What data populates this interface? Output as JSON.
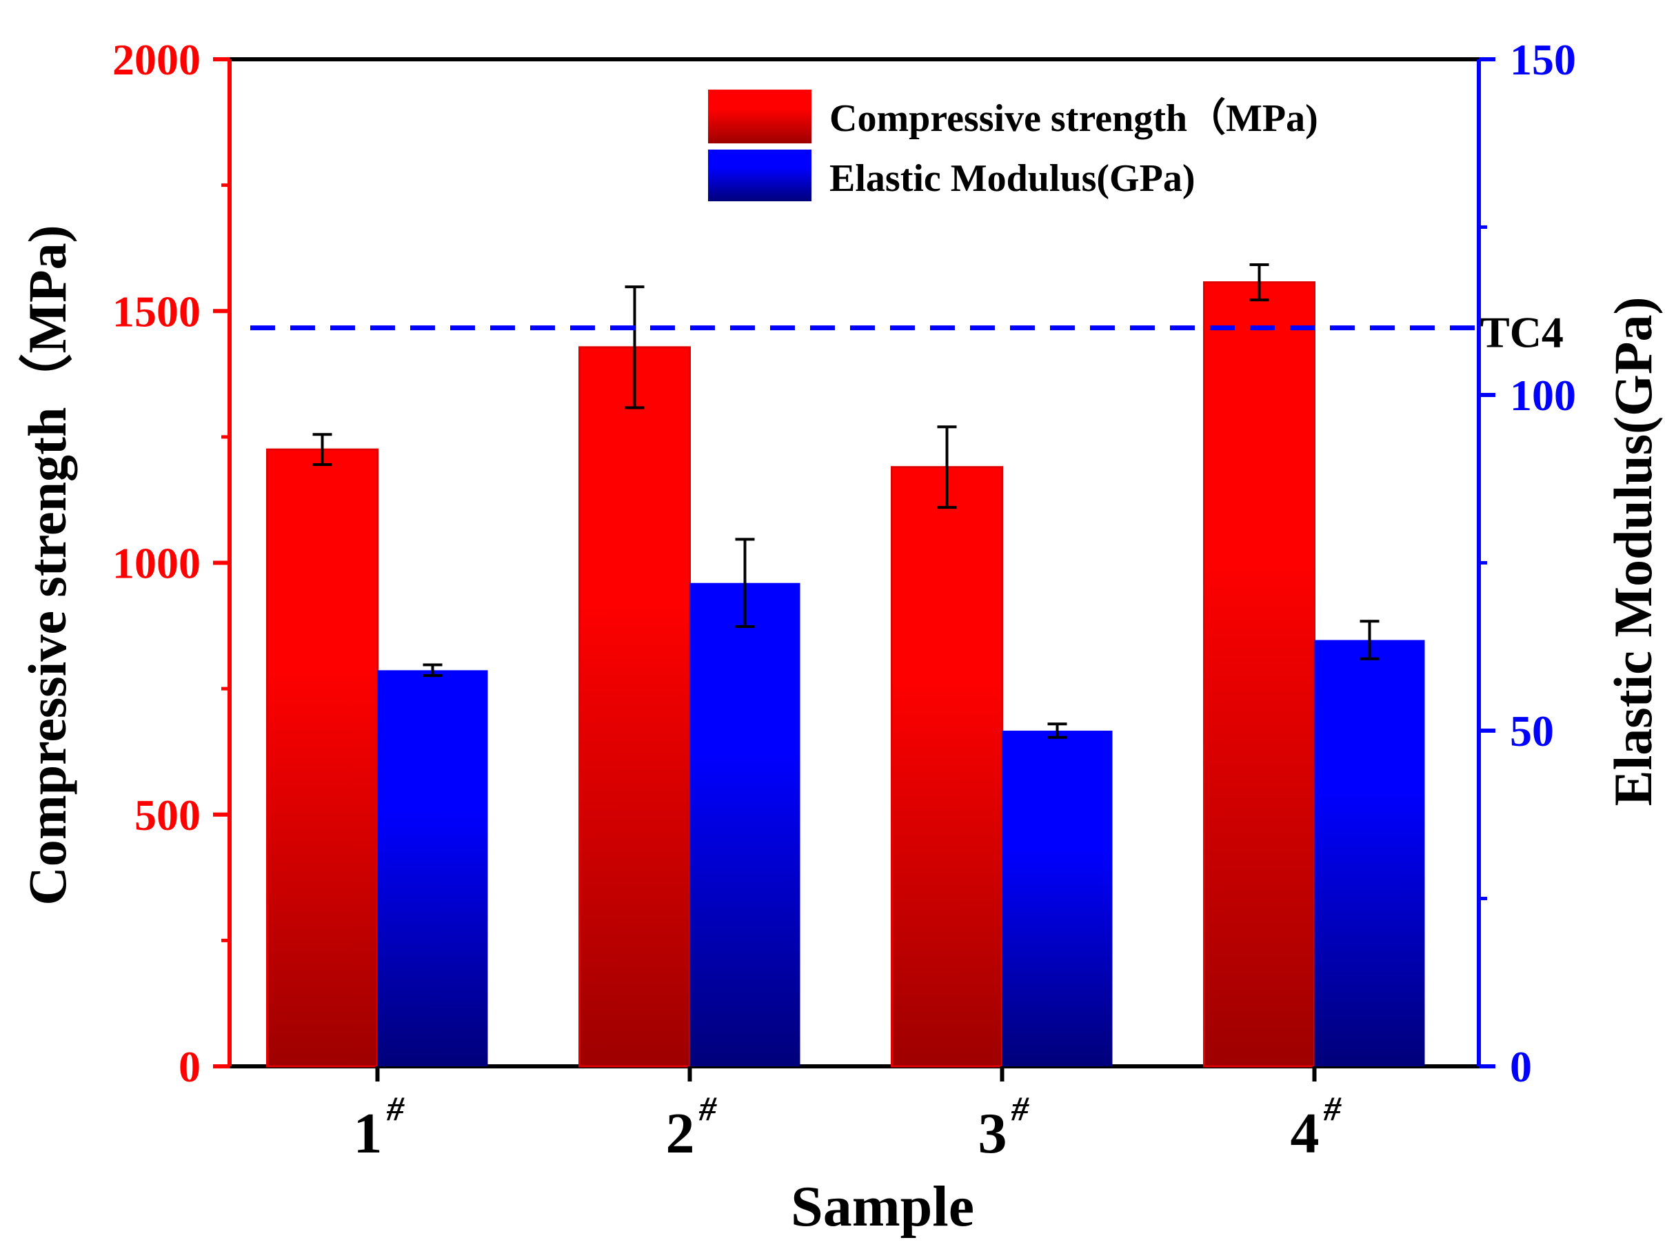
{
  "chart_data": {
    "type": "bar",
    "categories": [
      {
        "main": "1",
        "sup": "#"
      },
      {
        "main": "2",
        "sup": "#"
      },
      {
        "main": "3",
        "sup": "#"
      },
      {
        "main": "4",
        "sup": "#"
      }
    ],
    "series": [
      {
        "name": "Compressive strength（MPa)",
        "axis": "left",
        "values": [
          1225,
          1428,
          1190,
          1557
        ],
        "errors": [
          30,
          120,
          80,
          35
        ],
        "color_top": "#ff0000",
        "color_bottom": "#9e0000"
      },
      {
        "name": "Elastic Modulus(GPa)",
        "axis": "right",
        "values": [
          59,
          72,
          50,
          63.5
        ],
        "errors": [
          0.8,
          6.5,
          1.0,
          2.8
        ],
        "color_top": "#0000ff",
        "color_bottom": "#00007a"
      }
    ],
    "xlabel": "Sample",
    "ylabel_left": "Compressive strength（MPa)",
    "ylabel_right": "Elastic Modulus(GPa)",
    "ylim_left": [
      0,
      2000
    ],
    "yticks_left": [
      0,
      500,
      1000,
      1500,
      2000
    ],
    "ylim_right": [
      0,
      150
    ],
    "yticks_right": [
      0,
      50,
      100,
      150
    ],
    "left_axis_color": "#ff0000",
    "right_axis_color": "#0000ff",
    "reference_line": {
      "label": "TC4",
      "value_right": 110,
      "color": "#0000ff",
      "style": "dashed"
    },
    "legend_position": "top-right",
    "grid": false
  }
}
